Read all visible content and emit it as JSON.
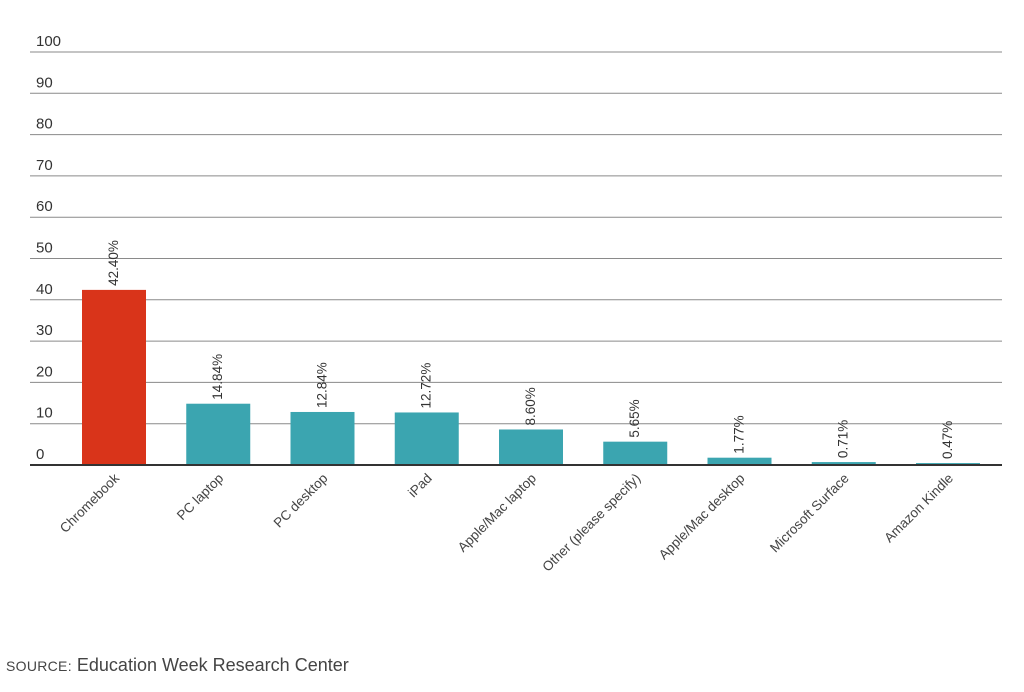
{
  "chart_data": {
    "type": "bar",
    "categories": [
      "Chromebook",
      "PC laptop",
      "PC desktop",
      "iPad",
      "Apple/Mac laptop",
      "Other (please specify)",
      "Apple/Mac desktop",
      "Microsoft Surface",
      "Amazon Kindle"
    ],
    "values": [
      42.4,
      14.84,
      12.84,
      12.72,
      8.6,
      5.65,
      1.77,
      0.71,
      0.47
    ],
    "value_labels": [
      "42.40%",
      "14.84%",
      "12.84%",
      "12.72%",
      "8.60%",
      "5.65%",
      "1.77%",
      "0.71%",
      "0.47%"
    ],
    "yticks": [
      0,
      10,
      20,
      30,
      40,
      50,
      60,
      70,
      80,
      90,
      100
    ],
    "ylim": [
      0,
      100
    ],
    "grid": true,
    "legend": "none",
    "colors": {
      "highlight": "#d9341a",
      "default": "#3ba5b0",
      "grid": "#8a8a8a",
      "axis": "#333333"
    },
    "highlight_index": 0
  },
  "source": {
    "prefix": "SOURCE:",
    "text": "Education Week Research Center"
  }
}
